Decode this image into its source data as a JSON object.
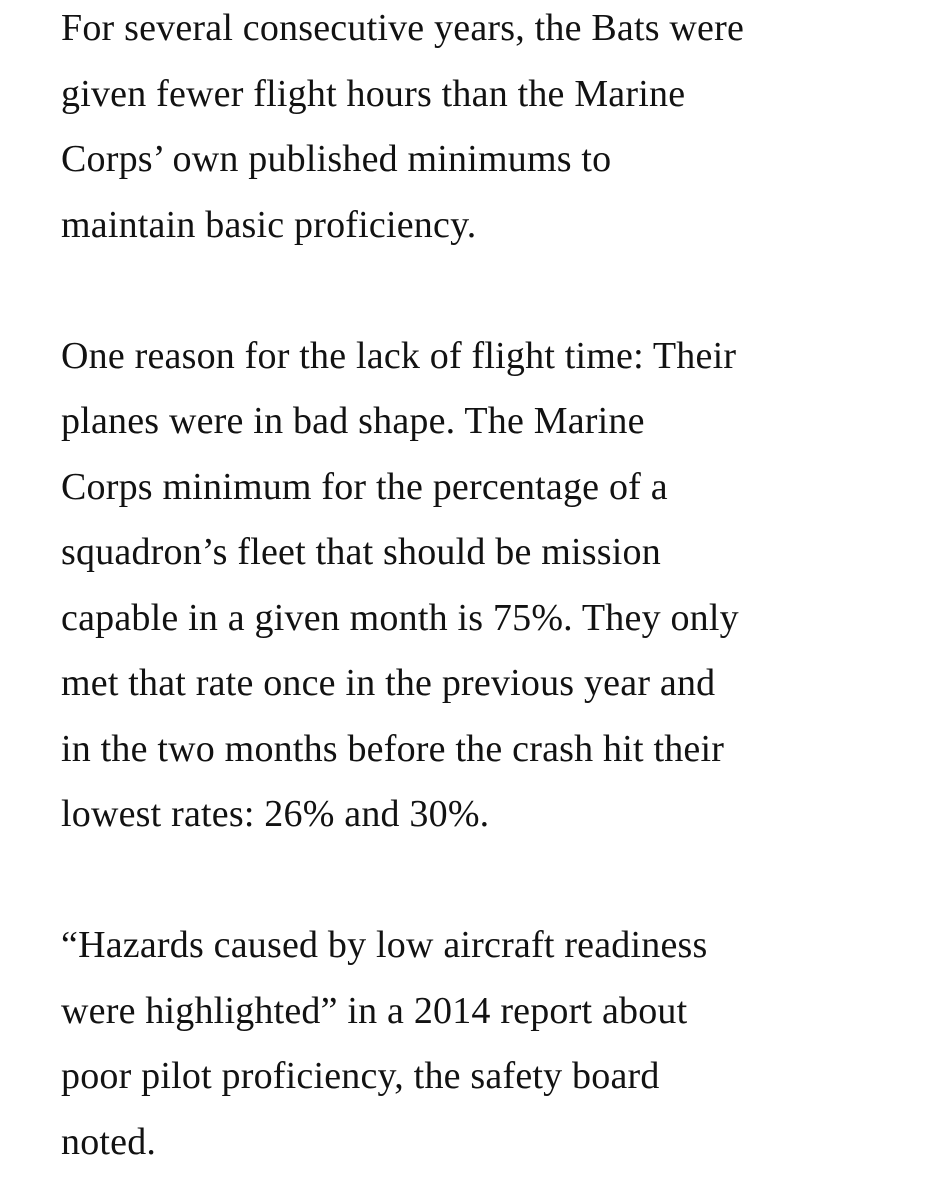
{
  "article": {
    "paragraphs": [
      {
        "lines": [
          "For several consecutive years, the Bats were",
          "given fewer flight hours than the Marine",
          "Corps’ own published minimums to",
          "maintain basic proficiency."
        ]
      },
      {
        "lines": [
          "One reason for the lack of flight time: Their",
          "planes were in bad shape. The Marine",
          "Corps minimum for the percentage of a",
          "squadron’s fleet that should be mission",
          "capable in a given month is 75%. They only",
          "met that rate once in the previous year and",
          "in the two months before the crash hit their",
          "lowest rates: 26% and 30%."
        ]
      },
      {
        "lines": [
          "“Hazards caused by low aircraft readiness",
          "were highlighted” in a 2014 report about",
          "poor pilot proficiency, the safety board",
          "noted."
        ]
      }
    ]
  }
}
